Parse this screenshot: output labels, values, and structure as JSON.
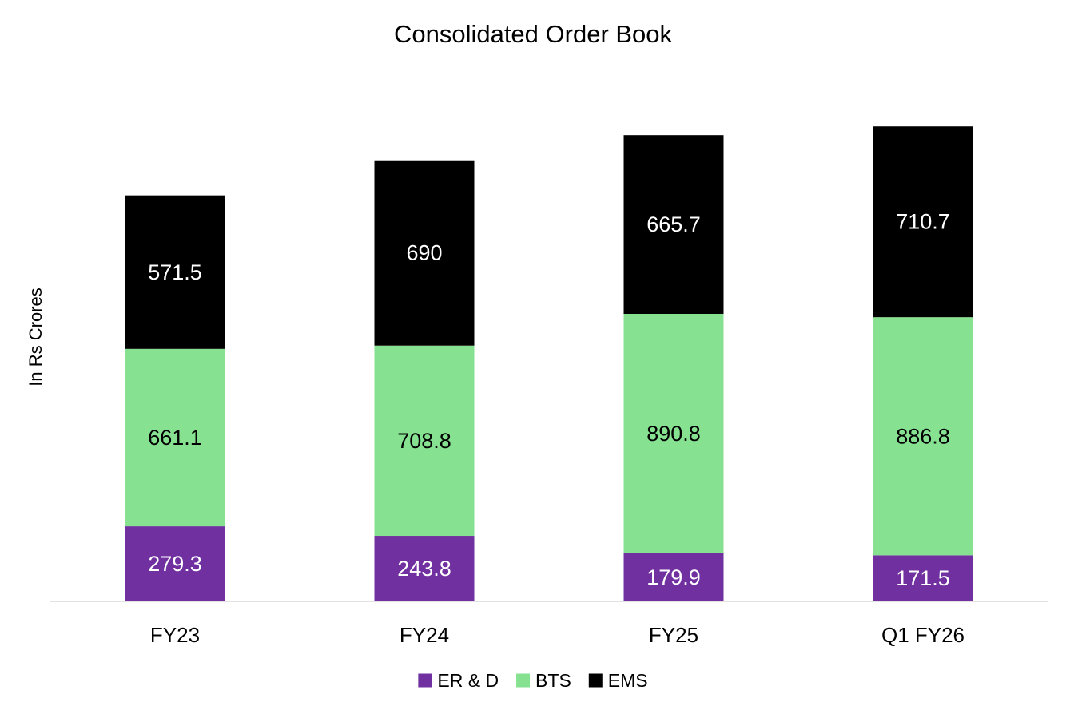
{
  "chart_data": {
    "type": "bar",
    "stacked": true,
    "title": "Consolidated Order Book",
    "xlabel": "",
    "ylabel": "In Rs Crores",
    "categories": [
      "FY23",
      "FY24",
      "FY25",
      "Q1 FY26"
    ],
    "series": [
      {
        "name": "ER & D",
        "color": "#7030a0",
        "label_color": "#ffffff",
        "values": [
          279.3,
          243.8,
          179.9,
          171.5
        ],
        "labels": [
          "279.3",
          "243.8",
          "179.9",
          "171.5"
        ]
      },
      {
        "name": "BTS",
        "color": "#86e291",
        "label_color": "#000000",
        "values": [
          661.1,
          708.8,
          890.8,
          886.8
        ],
        "labels": [
          "661.1",
          "708.8",
          "890.8",
          "886.8"
        ]
      },
      {
        "name": "EMS",
        "color": "#000000",
        "label_color": "#ffffff",
        "values": [
          571.5,
          690,
          665.7,
          710.7
        ],
        "labels": [
          "571.5",
          "690",
          "665.7",
          "710.7"
        ]
      }
    ],
    "ylim": [
      0,
      1850
    ],
    "grid": false,
    "legend": "bottom-center"
  }
}
